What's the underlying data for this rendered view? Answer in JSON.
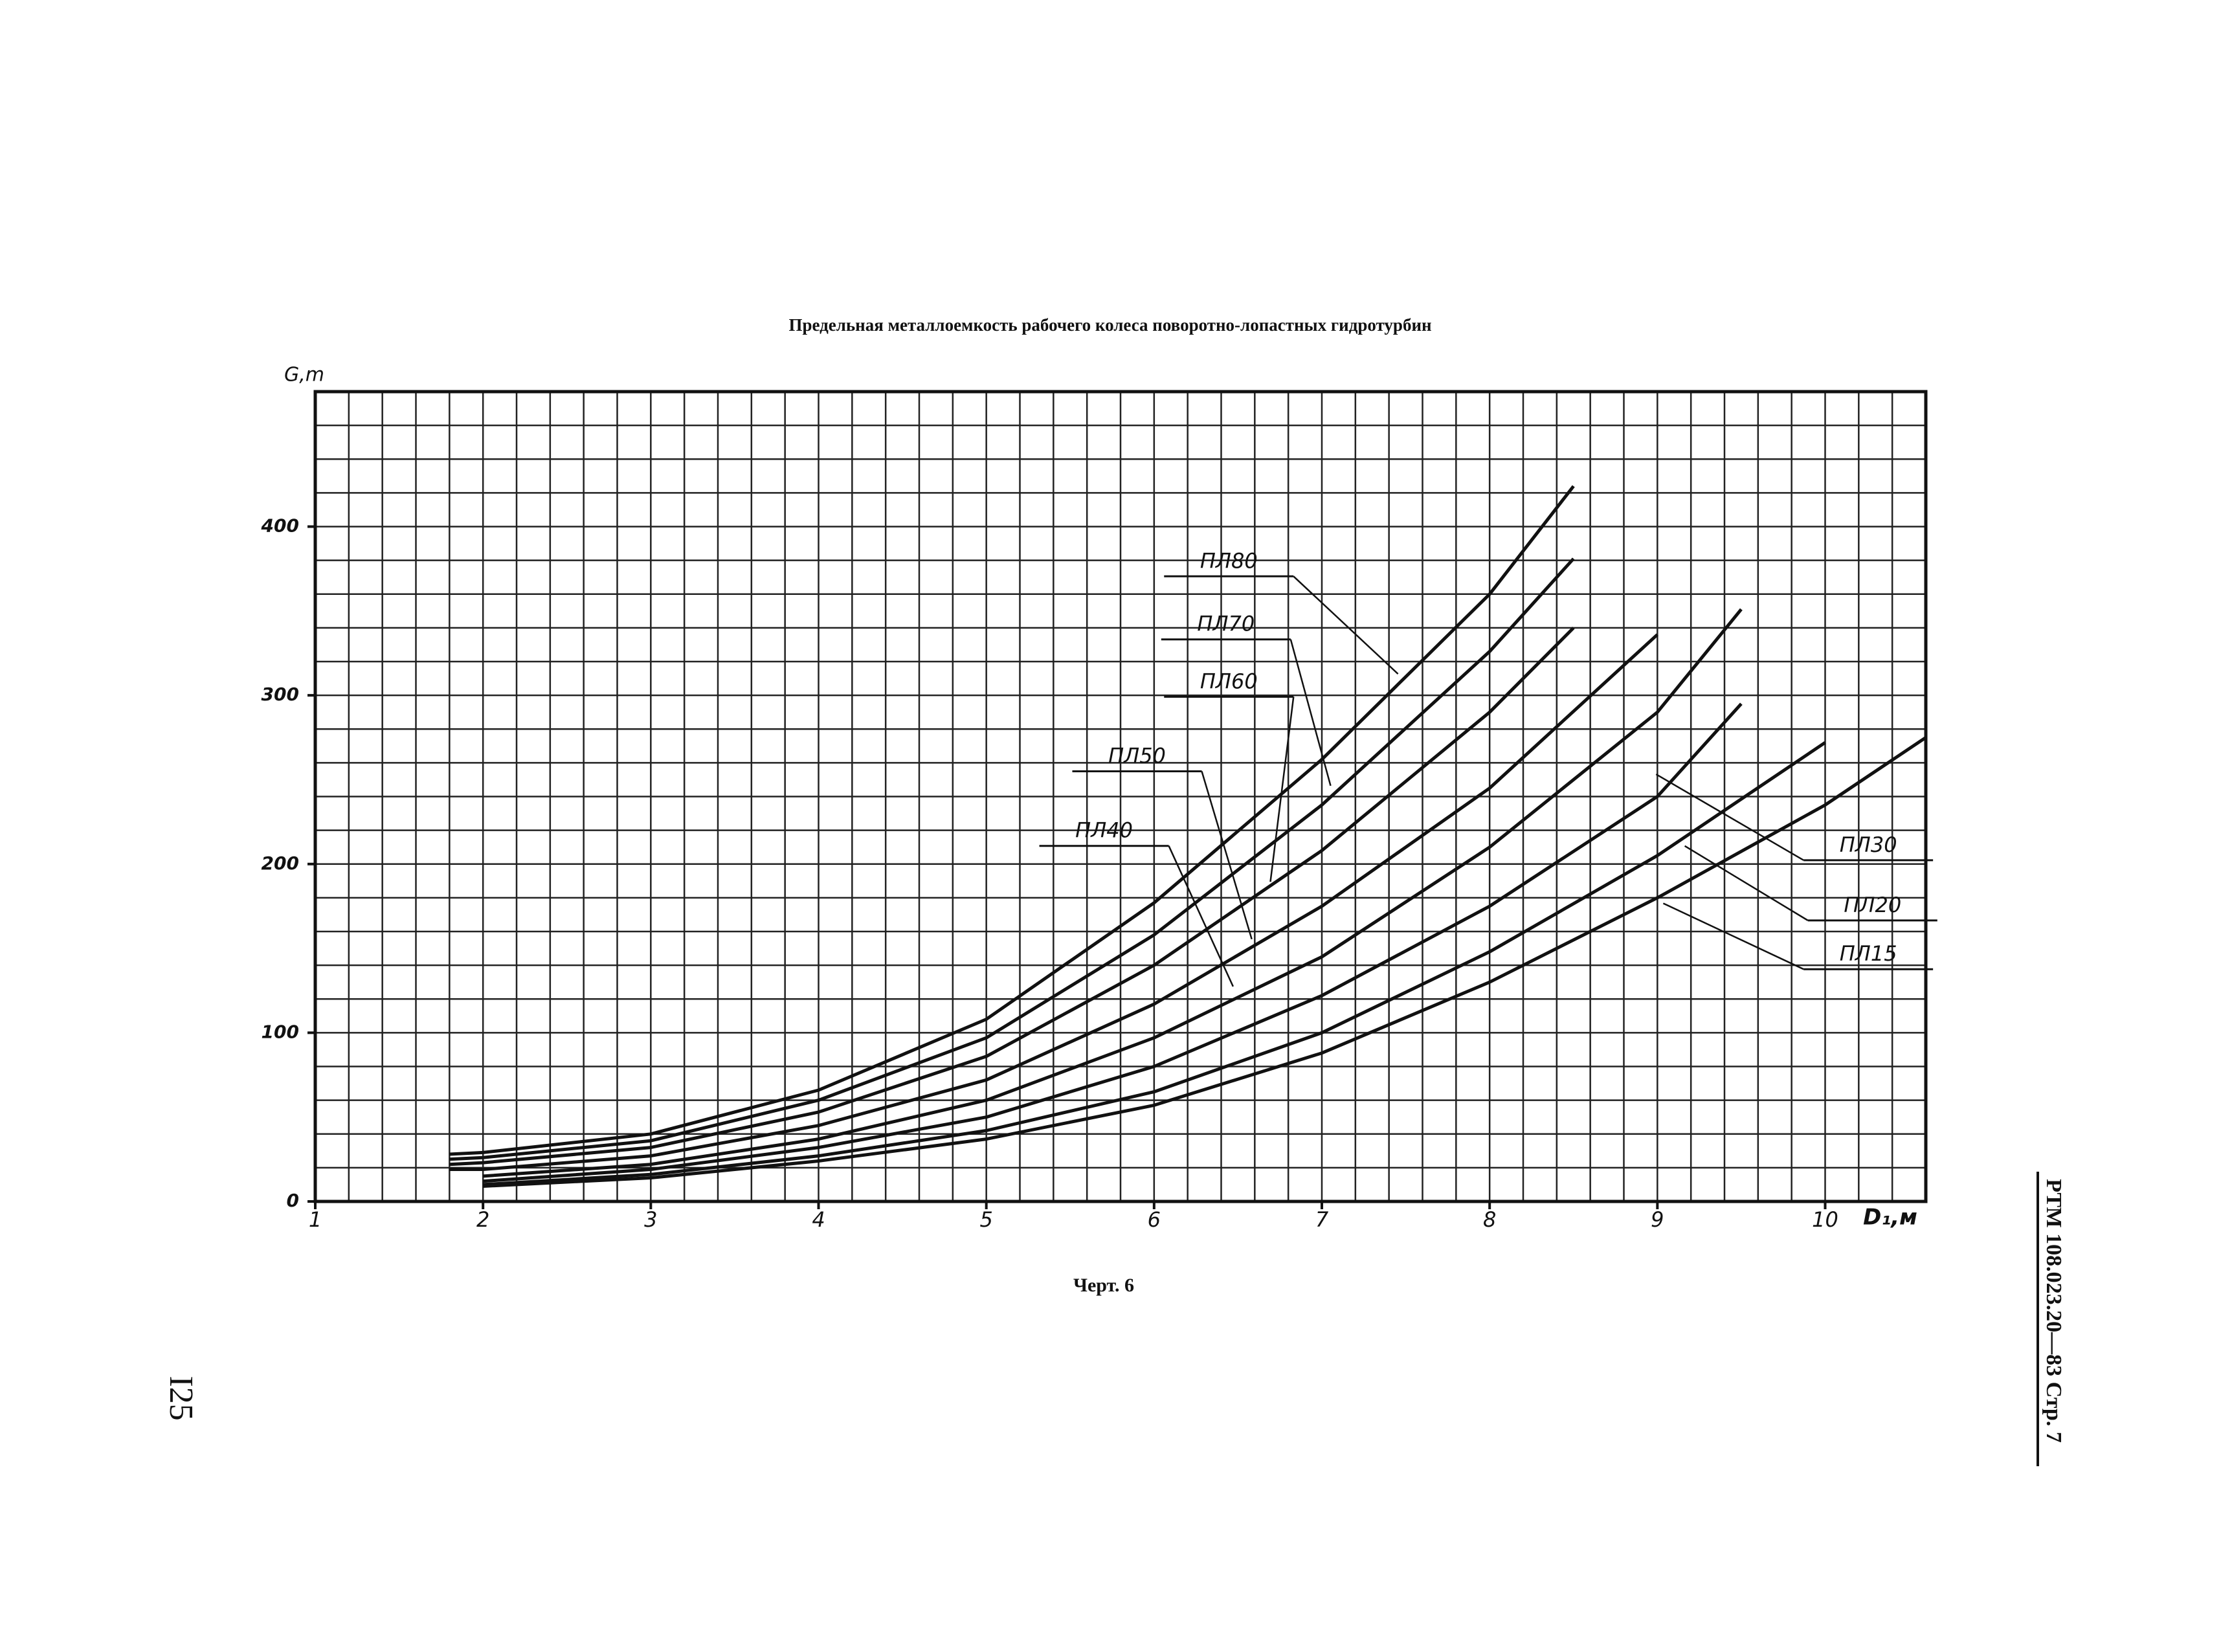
{
  "page_number": "I25",
  "doc_ref": "РТМ 108.023.20—83 Стр. 7",
  "chart_data": {
    "type": "line",
    "title": "Предельная металлоемкость рабочего колеса поворотно-лопастных гидротурбин",
    "caption": "Черт. 6",
    "y_label": "G,m",
    "x_label": "D₁,м",
    "xlim": [
      1,
      10.6
    ],
    "ylim": [
      0,
      480
    ],
    "xticks": [
      1,
      2,
      3,
      4,
      5,
      6,
      7,
      8,
      9,
      10
    ],
    "yticks": [
      0,
      100,
      200,
      300,
      400
    ],
    "grid": true,
    "minor_grid_step": {
      "x": 0.2,
      "y": 20
    },
    "series": [
      {
        "name": "ПЛ80",
        "color": "#111",
        "x": [
          1.8,
          2,
          3,
          4,
          5,
          6,
          7,
          8,
          8.5
        ],
        "values": [
          28,
          29,
          40,
          66,
          108,
          177,
          262,
          360,
          424
        ]
      },
      {
        "name": "ПЛ70",
        "color": "#111",
        "x": [
          1.8,
          2,
          3,
          4,
          5,
          6,
          7,
          8,
          8.5
        ],
        "values": [
          25,
          26,
          36,
          60,
          97,
          158,
          235,
          326,
          381
        ]
      },
      {
        "name": "ПЛ60",
        "color": "#111",
        "x": [
          1.8,
          2,
          3,
          4,
          5,
          6,
          7,
          8,
          8.5
        ],
        "values": [
          22,
          23,
          32,
          53,
          86,
          140,
          208,
          290,
          340
        ]
      },
      {
        "name": "ПЛ50",
        "color": "#111",
        "x": [
          1.8,
          2,
          3,
          4,
          5,
          6,
          7,
          8,
          9
        ],
        "values": [
          19,
          19,
          27,
          45,
          72,
          117,
          175,
          245,
          336
        ]
      },
      {
        "name": "ПЛ40",
        "color": "#111",
        "x": [
          2,
          3,
          4,
          5,
          6,
          7,
          8,
          9,
          9.5
        ],
        "values": [
          15,
          22,
          37,
          60,
          97,
          145,
          210,
          290,
          351
        ]
      },
      {
        "name": "ПЛ30",
        "color": "#111",
        "x": [
          2,
          3,
          4,
          5,
          6,
          7,
          8,
          9,
          9.5
        ],
        "values": [
          12,
          19,
          32,
          50,
          80,
          122,
          175,
          240,
          295
        ]
      },
      {
        "name": "ПЛ20",
        "color": "#111",
        "x": [
          2,
          3,
          4,
          5,
          6,
          7,
          8,
          9,
          10
        ],
        "values": [
          10,
          16,
          27,
          42,
          65,
          100,
          148,
          205,
          272
        ]
      },
      {
        "name": "ПЛ15",
        "color": "#111",
        "x": [
          2,
          3,
          4,
          5,
          6,
          7,
          8,
          9,
          10,
          10.6
        ],
        "values": [
          9,
          14,
          24,
          37,
          57,
          88,
          130,
          180,
          235,
          275
        ]
      }
    ]
  }
}
